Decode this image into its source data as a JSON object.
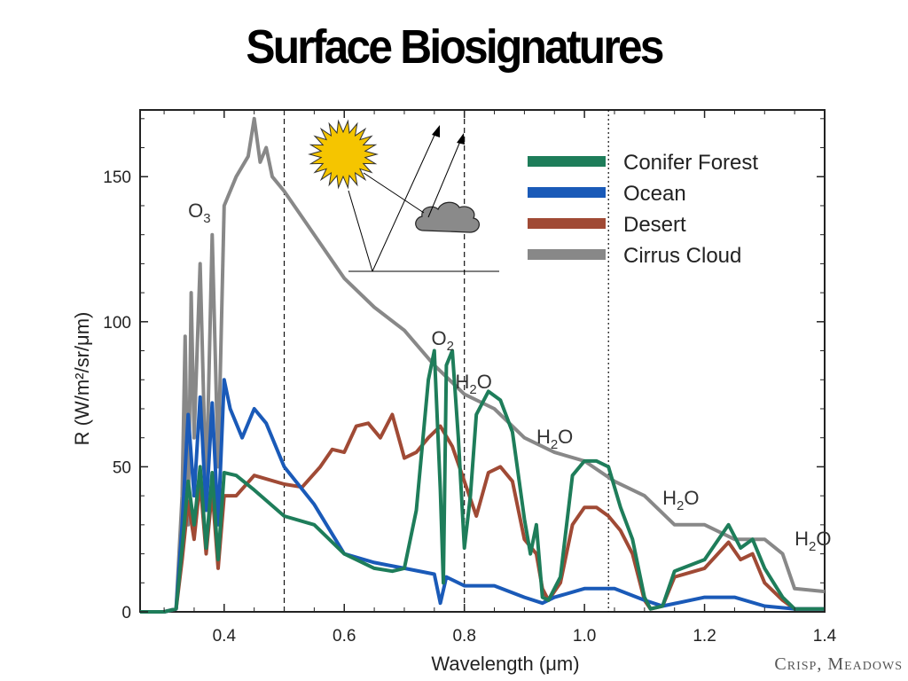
{
  "slide": {
    "title": "Surface Biosignatures",
    "credit": "Crisp, Meadows"
  },
  "chart_data": {
    "type": "line",
    "xlabel": "Wavelength (μm)",
    "ylabel": "R (W/m²/sr/μm)",
    "xlim": [
      0.26,
      1.4
    ],
    "ylim": [
      0,
      173
    ],
    "xticks": [
      "0.4",
      "0.6",
      "0.8",
      "1.0",
      "1.2",
      "1.4"
    ],
    "xtick_values": [
      0.4,
      0.6,
      0.8,
      1.0,
      1.2,
      1.4
    ],
    "yticks": [
      "0",
      "50",
      "100",
      "150"
    ],
    "ytick_values": [
      0,
      50,
      100,
      150
    ],
    "legend_position": "top-right",
    "series": [
      {
        "name": "Conifer Forest",
        "color": "#1e7d5a",
        "x": [
          0.26,
          0.3,
          0.32,
          0.33,
          0.34,
          0.35,
          0.36,
          0.37,
          0.38,
          0.39,
          0.4,
          0.42,
          0.45,
          0.5,
          0.55,
          0.6,
          0.65,
          0.68,
          0.7,
          0.72,
          0.74,
          0.75,
          0.76,
          0.765,
          0.77,
          0.78,
          0.79,
          0.8,
          0.81,
          0.82,
          0.84,
          0.86,
          0.88,
          0.9,
          0.91,
          0.92,
          0.93,
          0.94,
          0.96,
          0.98,
          1.0,
          1.02,
          1.04,
          1.06,
          1.08,
          1.1,
          1.11,
          1.13,
          1.15,
          1.2,
          1.24,
          1.26,
          1.28,
          1.3,
          1.33,
          1.35,
          1.4
        ],
        "y": [
          0,
          0,
          1,
          22,
          45,
          30,
          50,
          22,
          48,
          18,
          48,
          47,
          42,
          33,
          30,
          20,
          15,
          14,
          15,
          35,
          80,
          90,
          42,
          10,
          85,
          90,
          60,
          22,
          40,
          68,
          76,
          73,
          62,
          32,
          20,
          30,
          5,
          4,
          12,
          47,
          52,
          52,
          50,
          36,
          25,
          5,
          1,
          2,
          14,
          18,
          30,
          22,
          25,
          15,
          5,
          1,
          1
        ]
      },
      {
        "name": "Ocean",
        "color": "#1a5ab8",
        "x": [
          0.26,
          0.3,
          0.32,
          0.33,
          0.34,
          0.35,
          0.36,
          0.37,
          0.38,
          0.39,
          0.4,
          0.41,
          0.43,
          0.45,
          0.47,
          0.5,
          0.55,
          0.6,
          0.65,
          0.7,
          0.75,
          0.76,
          0.77,
          0.8,
          0.85,
          0.9,
          0.93,
          0.95,
          1.0,
          1.05,
          1.1,
          1.13,
          1.2,
          1.25,
          1.3,
          1.35,
          1.4
        ],
        "y": [
          0,
          0,
          1,
          30,
          68,
          40,
          74,
          35,
          72,
          30,
          80,
          70,
          60,
          70,
          65,
          50,
          37,
          20,
          17,
          15,
          13,
          3,
          12,
          9,
          9,
          5,
          3,
          5,
          8,
          8,
          4,
          2,
          5,
          5,
          2,
          1,
          1
        ]
      },
      {
        "name": "Desert",
        "color": "#a04a35",
        "x": [
          0.26,
          0.3,
          0.32,
          0.33,
          0.34,
          0.35,
          0.36,
          0.37,
          0.38,
          0.39,
          0.4,
          0.42,
          0.45,
          0.5,
          0.53,
          0.56,
          0.58,
          0.6,
          0.62,
          0.64,
          0.66,
          0.68,
          0.7,
          0.72,
          0.74,
          0.76,
          0.78,
          0.8,
          0.82,
          0.84,
          0.86,
          0.88,
          0.9,
          0.92,
          0.93,
          0.94,
          0.96,
          0.98,
          1.0,
          1.02,
          1.04,
          1.06,
          1.08,
          1.1,
          1.11,
          1.13,
          1.15,
          1.2,
          1.24,
          1.26,
          1.28,
          1.3,
          1.33,
          1.35,
          1.4
        ],
        "y": [
          0,
          0,
          1,
          18,
          38,
          25,
          45,
          20,
          42,
          15,
          40,
          40,
          47,
          44,
          43,
          50,
          56,
          55,
          64,
          65,
          60,
          68,
          53,
          55,
          60,
          64,
          57,
          45,
          33,
          48,
          50,
          45,
          25,
          20,
          8,
          4,
          10,
          30,
          36,
          36,
          33,
          28,
          20,
          4,
          1,
          2,
          12,
          15,
          24,
          18,
          20,
          10,
          4,
          1,
          1
        ]
      },
      {
        "name": "Cirrus Cloud",
        "color": "#888888",
        "x": [
          0.26,
          0.3,
          0.32,
          0.33,
          0.335,
          0.34,
          0.345,
          0.35,
          0.36,
          0.37,
          0.38,
          0.39,
          0.4,
          0.42,
          0.44,
          0.45,
          0.46,
          0.47,
          0.48,
          0.5,
          0.55,
          0.6,
          0.65,
          0.7,
          0.75,
          0.8,
          0.85,
          0.9,
          0.95,
          1.0,
          1.05,
          1.1,
          1.15,
          1.2,
          1.25,
          1.3,
          1.33,
          1.35,
          1.4
        ],
        "y": [
          0,
          0,
          1,
          40,
          95,
          30,
          110,
          60,
          120,
          40,
          130,
          50,
          140,
          150,
          157,
          170,
          155,
          160,
          150,
          145,
          130,
          115,
          105,
          97,
          85,
          75,
          70,
          60,
          55,
          52,
          45,
          40,
          30,
          30,
          25,
          25,
          20,
          8,
          7
        ]
      }
    ],
    "annotations": [
      {
        "base": "O",
        "sub": "3",
        "x": 0.34,
        "y": 136
      },
      {
        "base": "O",
        "sub": "2",
        "x": 0.745,
        "y": 92
      },
      {
        "base": "H",
        "sub": "2",
        "tail": "O",
        "x": 0.785,
        "y": 77
      },
      {
        "base": "H",
        "sub": "2",
        "tail": "O",
        "x": 0.92,
        "y": 58
      },
      {
        "base": "H",
        "sub": "2",
        "tail": "O",
        "x": 1.13,
        "y": 37
      },
      {
        "base": "H",
        "sub": "2",
        "tail": "O",
        "x": 1.35,
        "y": 23
      }
    ],
    "vertical_markers": [
      {
        "x": 0.5,
        "style": "dashed"
      },
      {
        "x": 0.8,
        "style": "dashed"
      },
      {
        "x": 1.04,
        "style": "dotted"
      }
    ],
    "inset_icons": [
      "sun-icon",
      "cloud-icon",
      "reflection-arrows-icon"
    ]
  }
}
